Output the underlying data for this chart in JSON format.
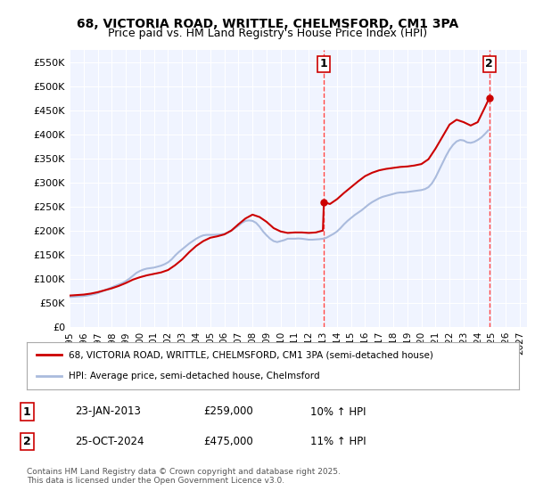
{
  "title": "68, VICTORIA ROAD, WRITTLE, CHELMSFORD, CM1 3PA",
  "subtitle": "Price paid vs. HM Land Registry's House Price Index (HPI)",
  "legend_line1": "68, VICTORIA ROAD, WRITTLE, CHELMSFORD, CM1 3PA (semi-detached house)",
  "legend_line2": "HPI: Average price, semi-detached house, Chelmsford",
  "annotation1_label": "1",
  "annotation1_date": "23-JAN-2013",
  "annotation1_price": "£259,000",
  "annotation1_hpi": "10% ↑ HPI",
  "annotation2_label": "2",
  "annotation2_date": "25-OCT-2024",
  "annotation2_price": "£475,000",
  "annotation2_hpi": "11% ↑ HPI",
  "copyright_text": "Contains HM Land Registry data © Crown copyright and database right 2025.\nThis data is licensed under the Open Government Licence v3.0.",
  "background_color": "#ffffff",
  "plot_bg_color": "#f0f4ff",
  "grid_color": "#ffffff",
  "red_line_color": "#cc0000",
  "blue_line_color": "#aabbdd",
  "vline_color": "#ff4444",
  "ylim": [
    0,
    575000
  ],
  "yticks": [
    0,
    50000,
    100000,
    150000,
    200000,
    250000,
    300000,
    350000,
    400000,
    450000,
    500000,
    550000
  ],
  "ytick_labels": [
    "£0",
    "£50K",
    "£100K",
    "£150K",
    "£200K",
    "£250K",
    "£300K",
    "£350K",
    "£400K",
    "£450K",
    "£500K",
    "£550K"
  ],
  "xlim_start": 1995.0,
  "xlim_end": 2027.5,
  "xticks": [
    1995,
    1996,
    1997,
    1998,
    1999,
    2000,
    2001,
    2002,
    2003,
    2004,
    2005,
    2006,
    2007,
    2008,
    2009,
    2010,
    2011,
    2012,
    2013,
    2014,
    2015,
    2016,
    2017,
    2018,
    2019,
    2020,
    2021,
    2022,
    2023,
    2024,
    2025,
    2026,
    2027
  ],
  "vline1_x": 2013.07,
  "vline2_x": 2024.82,
  "marker1_x": 2013.07,
  "marker1_y": 259000,
  "marker2_x": 2024.82,
  "marker2_y": 475000,
  "hpi_data_x": [
    1995.0,
    1995.25,
    1995.5,
    1995.75,
    1996.0,
    1996.25,
    1996.5,
    1996.75,
    1997.0,
    1997.25,
    1997.5,
    1997.75,
    1998.0,
    1998.25,
    1998.5,
    1998.75,
    1999.0,
    1999.25,
    1999.5,
    1999.75,
    2000.0,
    2000.25,
    2000.5,
    2000.75,
    2001.0,
    2001.25,
    2001.5,
    2001.75,
    2002.0,
    2002.25,
    2002.5,
    2002.75,
    2003.0,
    2003.25,
    2003.5,
    2003.75,
    2004.0,
    2004.25,
    2004.5,
    2004.75,
    2005.0,
    2005.25,
    2005.5,
    2005.75,
    2006.0,
    2006.25,
    2006.5,
    2006.75,
    2007.0,
    2007.25,
    2007.5,
    2007.75,
    2008.0,
    2008.25,
    2008.5,
    2008.75,
    2009.0,
    2009.25,
    2009.5,
    2009.75,
    2010.0,
    2010.25,
    2010.5,
    2010.75,
    2011.0,
    2011.25,
    2011.5,
    2011.75,
    2012.0,
    2012.25,
    2012.5,
    2012.75,
    2013.0,
    2013.25,
    2013.5,
    2013.75,
    2014.0,
    2014.25,
    2014.5,
    2014.75,
    2015.0,
    2015.25,
    2015.5,
    2015.75,
    2016.0,
    2016.25,
    2016.5,
    2016.75,
    2017.0,
    2017.25,
    2017.5,
    2017.75,
    2018.0,
    2018.25,
    2018.5,
    2018.75,
    2019.0,
    2019.25,
    2019.5,
    2019.75,
    2020.0,
    2020.25,
    2020.5,
    2020.75,
    2021.0,
    2021.25,
    2021.5,
    2021.75,
    2022.0,
    2022.25,
    2022.5,
    2022.75,
    2023.0,
    2023.25,
    2023.5,
    2023.75,
    2024.0,
    2024.25,
    2024.5,
    2024.75
  ],
  "hpi_data_y": [
    62000,
    62500,
    63000,
    63500,
    64000,
    65000,
    66500,
    68000,
    70000,
    73000,
    76000,
    79000,
    82000,
    85000,
    88000,
    91000,
    95000,
    100000,
    106000,
    112000,
    116000,
    119000,
    121000,
    122000,
    123000,
    125000,
    127000,
    130000,
    134000,
    140000,
    148000,
    155000,
    161000,
    167000,
    173000,
    178000,
    183000,
    187000,
    190000,
    191000,
    191000,
    191000,
    191500,
    192000,
    193000,
    196000,
    200000,
    205000,
    210000,
    216000,
    220000,
    221000,
    220000,
    216000,
    208000,
    198000,
    190000,
    183000,
    178000,
    176000,
    178000,
    180000,
    183000,
    183000,
    183000,
    183500,
    183000,
    182000,
    181000,
    181000,
    181500,
    182000,
    183000,
    185000,
    189000,
    193000,
    198000,
    205000,
    213000,
    220000,
    226000,
    232000,
    237000,
    242000,
    248000,
    254000,
    259000,
    263000,
    267000,
    270000,
    272000,
    274000,
    276000,
    278000,
    279000,
    279000,
    280000,
    281000,
    282000,
    283000,
    284000,
    286000,
    290000,
    298000,
    310000,
    325000,
    340000,
    355000,
    368000,
    378000,
    385000,
    388000,
    387000,
    383000,
    382000,
    384000,
    388000,
    393000,
    400000,
    408000
  ],
  "price_data_x": [
    1995.0,
    1995.5,
    1996.0,
    1996.5,
    1997.0,
    1997.5,
    1998.0,
    1998.5,
    1999.0,
    1999.5,
    2000.0,
    2000.5,
    2001.0,
    2001.5,
    2002.0,
    2002.5,
    2003.0,
    2003.5,
    2004.0,
    2004.5,
    2005.0,
    2005.5,
    2006.0,
    2006.5,
    2007.0,
    2007.5,
    2008.0,
    2008.5,
    2009.0,
    2009.5,
    2010.0,
    2010.5,
    2011.0,
    2011.5,
    2012.0,
    2012.5,
    2013.0,
    2013.07,
    2013.5,
    2014.0,
    2014.5,
    2015.0,
    2015.5,
    2016.0,
    2016.5,
    2017.0,
    2017.5,
    2018.0,
    2018.5,
    2019.0,
    2019.5,
    2020.0,
    2020.5,
    2021.0,
    2021.5,
    2022.0,
    2022.5,
    2023.0,
    2023.5,
    2024.0,
    2024.5,
    2024.82
  ],
  "price_data_y": [
    65000,
    66000,
    67000,
    69000,
    72000,
    76000,
    80000,
    85000,
    91000,
    98000,
    103000,
    107000,
    110000,
    113000,
    118000,
    128000,
    140000,
    155000,
    168000,
    178000,
    185000,
    188000,
    192000,
    200000,
    213000,
    225000,
    233000,
    228000,
    218000,
    205000,
    198000,
    195000,
    196000,
    196000,
    195000,
    196000,
    200000,
    259000,
    255000,
    265000,
    278000,
    290000,
    302000,
    313000,
    320000,
    325000,
    328000,
    330000,
    332000,
    333000,
    335000,
    338000,
    348000,
    370000,
    395000,
    420000,
    430000,
    425000,
    418000,
    425000,
    455000,
    475000
  ]
}
